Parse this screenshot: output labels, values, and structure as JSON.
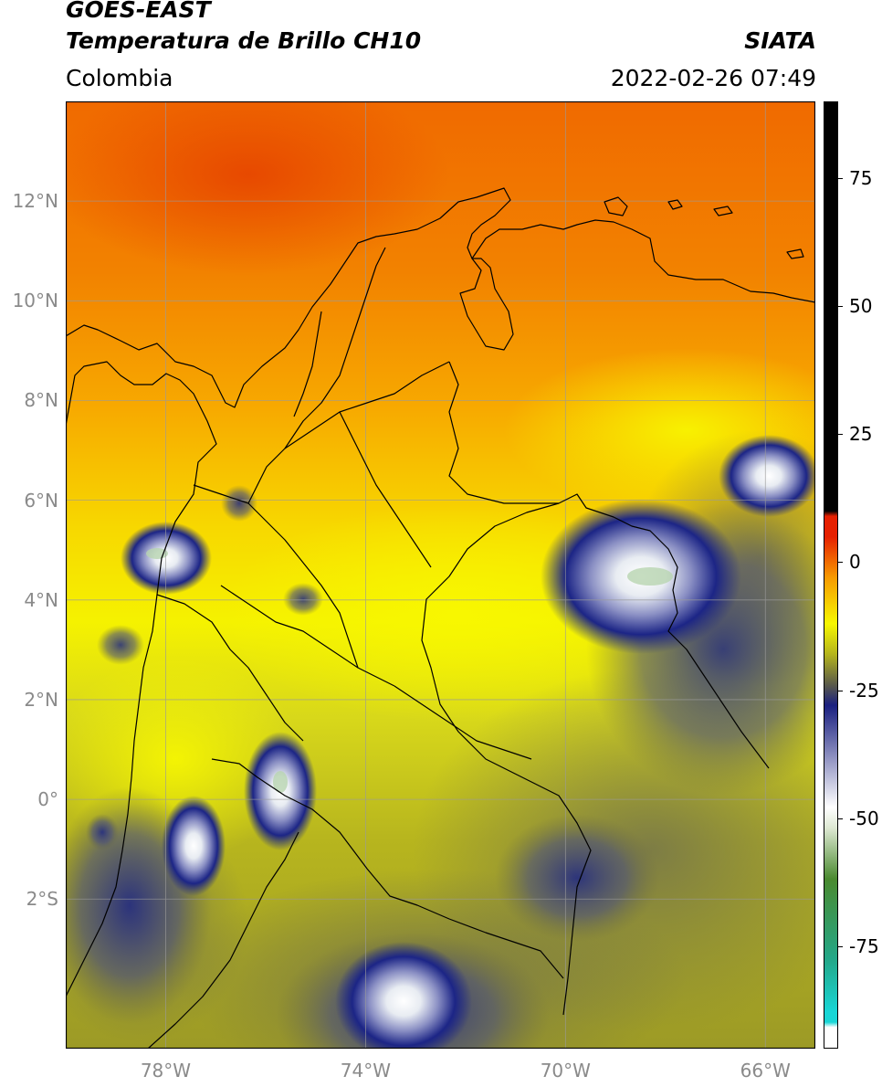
{
  "header": {
    "satellite": "GOES-EAST",
    "product": "Temperatura de Brillo CH10",
    "agency": "SIATA",
    "region": "Colombia",
    "datetime": "2022-02-26 07:49"
  },
  "map": {
    "lon_range": [
      -80,
      -65
    ],
    "lat_range": [
      -5,
      14
    ],
    "y_ticks": [
      {
        "lat": 12,
        "label": "12°N"
      },
      {
        "lat": 10,
        "label": "10°N"
      },
      {
        "lat": 8,
        "label": "8°N"
      },
      {
        "lat": 6,
        "label": "6°N"
      },
      {
        "lat": 4,
        "label": "4°N"
      },
      {
        "lat": 2,
        "label": "2°N"
      },
      {
        "lat": 0,
        "label": "0°"
      },
      {
        "lat": -2,
        "label": "2°S"
      }
    ],
    "x_ticks": [
      {
        "lon": -78,
        "label": "78°W"
      },
      {
        "lon": -74,
        "label": "74°W"
      },
      {
        "lon": -70,
        "label": "70°W"
      },
      {
        "lon": -66,
        "label": "66°W"
      }
    ],
    "gridlines": true
  },
  "colorbar": {
    "range": [
      -95,
      90
    ],
    "ticks": [
      {
        "value": 75,
        "label": "75"
      },
      {
        "value": 50,
        "label": "50"
      },
      {
        "value": 25,
        "label": "25"
      },
      {
        "value": 0,
        "label": "0"
      },
      {
        "value": -25,
        "label": "-25"
      },
      {
        "value": -50,
        "label": "-50"
      },
      {
        "value": -75,
        "label": "-75"
      }
    ],
    "colors": {
      "white": "#ffffff",
      "cyan": "#19d6d6",
      "teal": "#23a88a",
      "green": "#4a8a2f",
      "pale_green": "#dde8d2",
      "blue": "#1a2080",
      "gray": "#5a5a4a",
      "olive": "#b4b41c",
      "yellow": "#f7f700",
      "orange": "#f79a00",
      "red": "#e62000",
      "black": "#000000"
    }
  }
}
